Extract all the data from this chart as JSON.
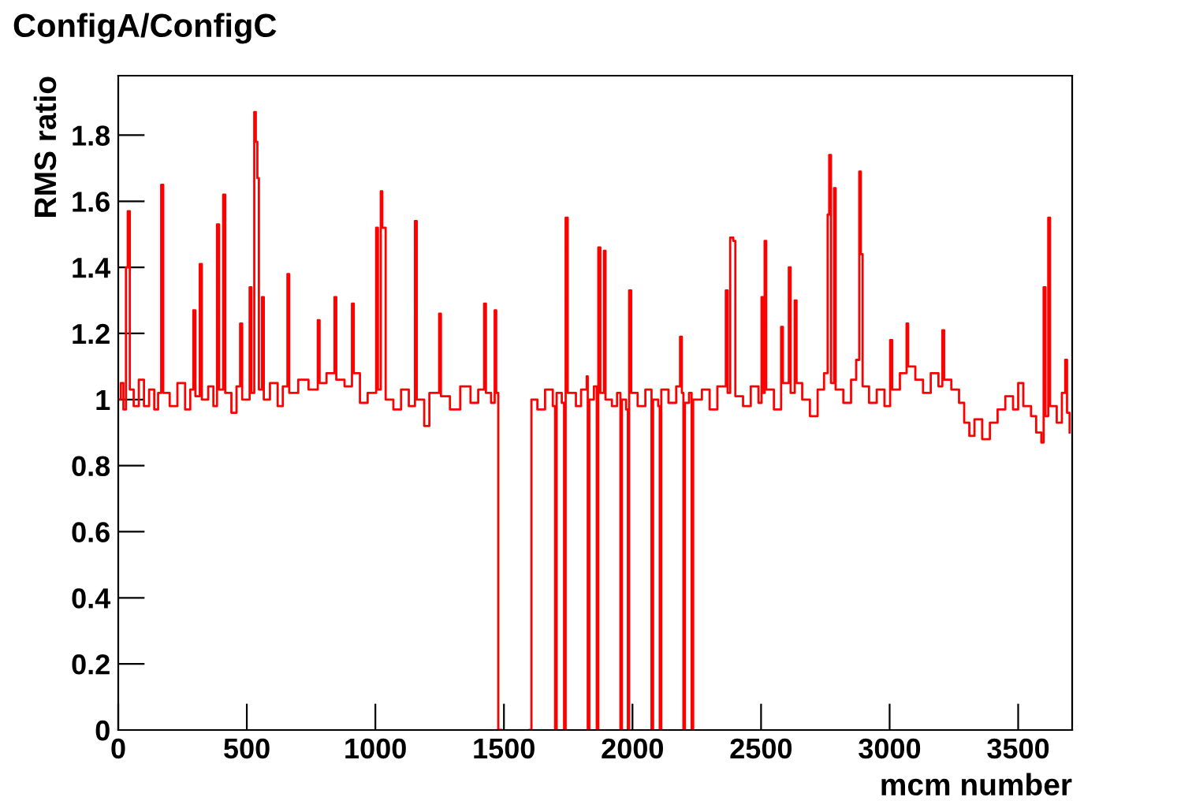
{
  "chart_data": {
    "type": "step",
    "title": "ConfigA/ConfigC",
    "xlabel": "mcm number",
    "ylabel": "RMS ratio",
    "xlim": [
      0,
      3710
    ],
    "ylim": [
      0,
      1.98
    ],
    "xticks": [
      0,
      500,
      1000,
      1500,
      2000,
      2500,
      3000,
      3500
    ],
    "yticks": [
      0,
      0.2,
      0.4,
      0.6,
      0.8,
      1,
      1.2,
      1.4,
      1.6,
      1.8
    ],
    "grid": false,
    "legend": false,
    "marker": "none",
    "line_style": "solid",
    "series": [
      {
        "color": "#ff0000",
        "x": [
          0,
          10,
          20,
          30,
          37,
          45,
          60,
          80,
          100,
          120,
          140,
          155,
          167,
          175,
          200,
          230,
          260,
          280,
          292,
          300,
          317,
          325,
          350,
          370,
          384,
          392,
          408,
          416,
          440,
          460,
          474,
          482,
          511,
          518,
          529,
          535,
          541,
          547,
          559,
          566,
          590,
          620,
          640,
          658,
          665,
          700,
          740,
          776,
          783,
          810,
          841,
          848,
          880,
          909,
          916,
          940,
          970,
          1003,
          1010,
          1021,
          1027,
          1034,
          1040,
          1070,
          1100,
          1130,
          1154,
          1161,
          1190,
          1210,
          1248,
          1255,
          1290,
          1330,
          1370,
          1400,
          1423,
          1430,
          1450,
          1464,
          1470,
          1478,
          1490,
          1600,
          1607,
          1630,
          1660,
          1690,
          1699,
          1705,
          1725,
          1734,
          1740,
          1748,
          1780,
          1800,
          1822,
          1826,
          1832,
          1850,
          1861,
          1867,
          1875,
          1889,
          1895,
          1920,
          1940,
          1953,
          1959,
          1975,
          1982,
          1987,
          1995,
          2020,
          2050,
          2074,
          2080,
          2100,
          2106,
          2112,
          2140,
          2170,
          2185,
          2192,
          2198,
          2204,
          2220,
          2230,
          2236,
          2270,
          2300,
          2330,
          2363,
          2370,
          2380,
          2392,
          2400,
          2430,
          2460,
          2490,
          2502,
          2508,
          2514,
          2520,
          2550,
          2578,
          2585,
          2608,
          2615,
          2631,
          2638,
          2660,
          2690,
          2720,
          2745,
          2759,
          2765,
          2772,
          2784,
          2790,
          2820,
          2850,
          2870,
          2882,
          2888,
          2895,
          2920,
          2950,
          2980,
          3002,
          3010,
          3040,
          3066,
          3072,
          3100,
          3130,
          3160,
          3190,
          3205,
          3212,
          3240,
          3270,
          3290,
          3310,
          3330,
          3360,
          3390,
          3420,
          3450,
          3480,
          3500,
          3520,
          3550,
          3570,
          3590,
          3599,
          3606,
          3617,
          3624,
          3650,
          3670,
          3683,
          3690,
          3700
        ],
        "values": [
          1.0,
          1.05,
          0.97,
          1.4,
          1.57,
          1.03,
          0.98,
          1.06,
          0.98,
          1.03,
          0.97,
          1.02,
          1.65,
          1.02,
          0.98,
          1.05,
          0.97,
          1.03,
          1.27,
          1.01,
          1.41,
          1.0,
          1.04,
          0.98,
          1.53,
          1.03,
          1.62,
          1.02,
          0.96,
          1.04,
          1.23,
          1.0,
          1.34,
          1.02,
          1.87,
          1.78,
          1.67,
          1.03,
          1.31,
          1.0,
          1.05,
          0.98,
          1.04,
          1.38,
          1.02,
          1.06,
          1.03,
          1.24,
          1.05,
          1.08,
          1.31,
          1.06,
          1.04,
          1.29,
          1.08,
          0.99,
          1.02,
          1.52,
          1.03,
          1.63,
          1.52,
          1.52,
          1.0,
          0.97,
          1.03,
          0.98,
          1.54,
          1.0,
          0.92,
          1.02,
          1.26,
          1.01,
          0.97,
          1.04,
          0.99,
          1.03,
          1.29,
          1.02,
          0.99,
          1.27,
          1.02,
          0,
          null,
          0,
          1.0,
          0.97,
          1.03,
          0.98,
          0,
          1.02,
          0.99,
          0,
          1.55,
          1.02,
          0.98,
          1.03,
          1.07,
          0,
          1.0,
          1.04,
          0,
          1.46,
          1.02,
          1.45,
          1.0,
          0.98,
          1.02,
          0,
          1.0,
          0.97,
          0,
          1.33,
          1.02,
          0.98,
          1.03,
          0,
          1.0,
          0.98,
          0,
          1.03,
          0.99,
          1.04,
          1.19,
          1.02,
          0,
          0.99,
          1.02,
          0,
          1.0,
          1.03,
          0.97,
          1.04,
          1.33,
          1.02,
          1.49,
          1.48,
          1.01,
          0.98,
          1.04,
          0.99,
          1.31,
          1.02,
          1.48,
          1.03,
          0.97,
          1.22,
          1.05,
          1.4,
          1.02,
          1.3,
          1.05,
          1.0,
          0.95,
          1.03,
          1.08,
          1.56,
          1.74,
          1.05,
          1.64,
          1.03,
          0.99,
          1.06,
          1.12,
          1.69,
          1.44,
          1.04,
          0.99,
          1.03,
          0.98,
          1.18,
          1.03,
          1.08,
          1.23,
          1.1,
          1.06,
          1.02,
          1.08,
          1.04,
          1.21,
          1.06,
          1.03,
          0.99,
          0.93,
          0.89,
          0.94,
          0.88,
          0.93,
          0.97,
          1.01,
          0.97,
          1.05,
          0.98,
          0.95,
          0.9,
          0.87,
          1.34,
          0.95,
          1.55,
          0.98,
          0.93,
          1.02,
          1.12,
          0.96,
          0.9
        ]
      }
    ]
  }
}
